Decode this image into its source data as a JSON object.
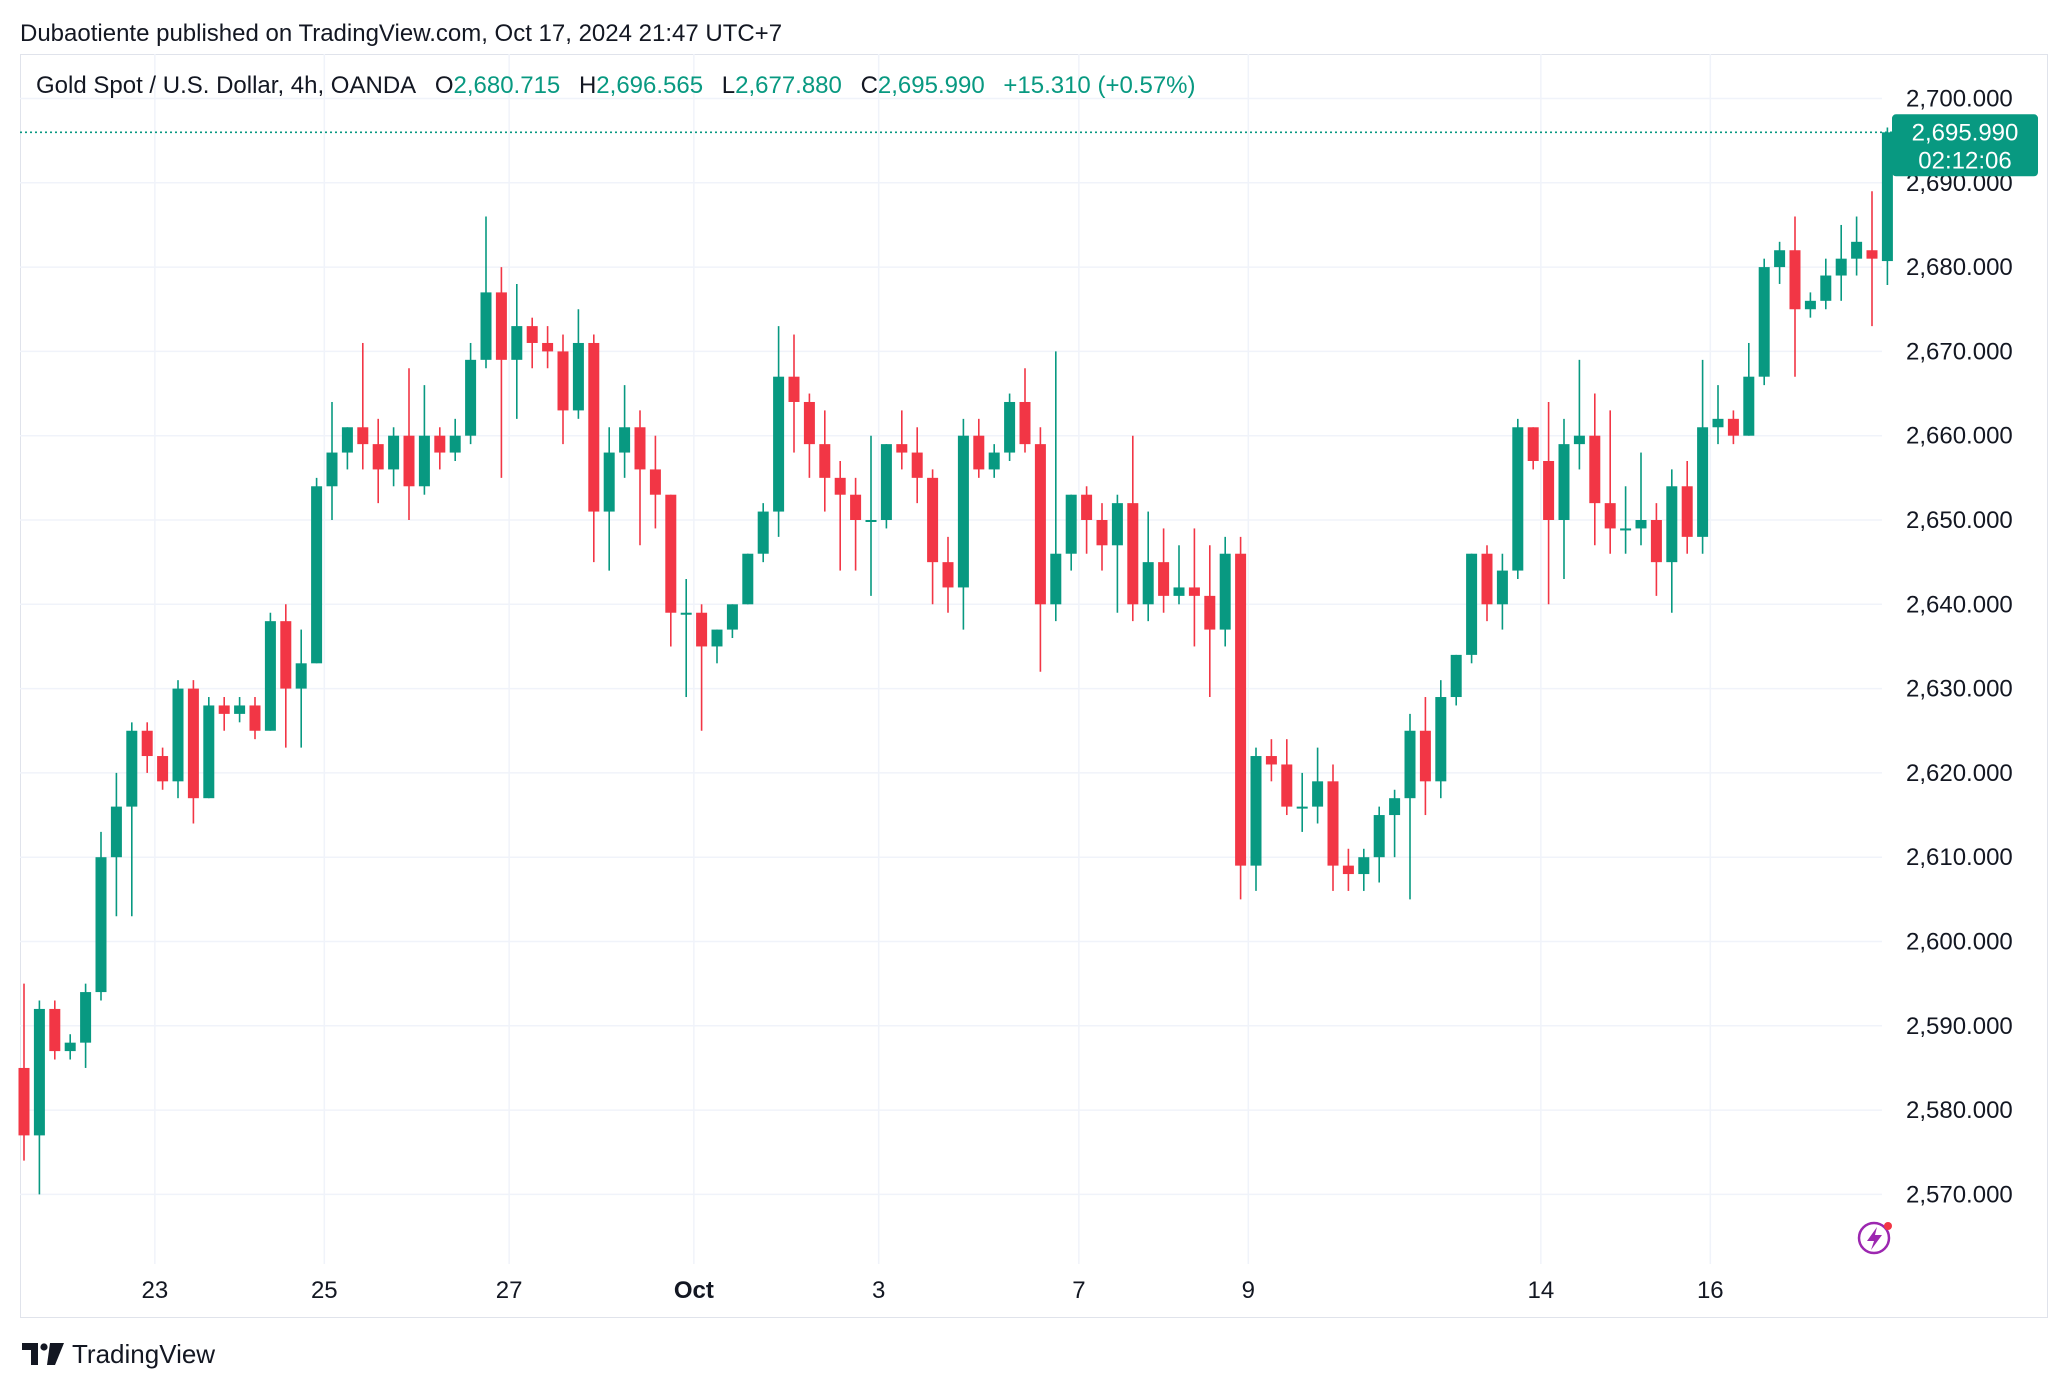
{
  "header": {
    "text": "Dubaotiente published on TradingView.com, Oct 17, 2024 21:47 UTC+7"
  },
  "legend": {
    "symbol": "Gold Spot / U.S. Dollar, 4h, OANDA",
    "o_label": "O",
    "o": "2,680.715",
    "h_label": "H",
    "h": "2,696.565",
    "l_label": "L",
    "l": "2,677.880",
    "c_label": "C",
    "c": "2,695.990",
    "change": "+15.310 (+0.57%)"
  },
  "price_badge": {
    "price": "2,695.990",
    "countdown": "02:12:06",
    "color": "#089981"
  },
  "footer": {
    "brand": "TradingView"
  },
  "colors": {
    "up": "#089981",
    "down": "#f23645",
    "grid": "#f0f3fa",
    "axis_text": "#131722"
  },
  "chart_data": {
    "type": "candlestick",
    "timeframe": "4h",
    "y_ticks": [
      2570,
      2580,
      2590,
      2600,
      2610,
      2620,
      2630,
      2640,
      2650,
      2660,
      2670,
      2680,
      2690,
      2700
    ],
    "y_tick_labels": [
      "2,570.000",
      "2,580.000",
      "2,590.000",
      "2,600.000",
      "2,610.000",
      "2,620.000",
      "2,630.000",
      "2,640.000",
      "2,650.000",
      "2,660.000",
      "2,670.000",
      "2,680.000",
      "2,690.000",
      "2,700.000"
    ],
    "ylim": [
      2563,
      2703
    ],
    "x_ticks": [
      {
        "label": "23",
        "index": 8.5,
        "bold": false
      },
      {
        "label": "25",
        "index": 19.5,
        "bold": false
      },
      {
        "label": "27",
        "index": 31.5,
        "bold": false
      },
      {
        "label": "Oct",
        "index": 43.5,
        "bold": true
      },
      {
        "label": "3",
        "index": 55.5,
        "bold": false
      },
      {
        "label": "7",
        "index": 68.5,
        "bold": false
      },
      {
        "label": "9",
        "index": 79.5,
        "bold": false
      },
      {
        "label": "14",
        "index": 98.5,
        "bold": false
      },
      {
        "label": "16",
        "index": 109.5,
        "bold": false
      }
    ],
    "last_price": 2695.99,
    "candles": [
      {
        "o": 2585,
        "h": 2595,
        "l": 2574,
        "c": 2577
      },
      {
        "o": 2577,
        "h": 2593,
        "l": 2570,
        "c": 2592
      },
      {
        "o": 2592,
        "h": 2593,
        "l": 2586,
        "c": 2587
      },
      {
        "o": 2587,
        "h": 2589,
        "l": 2586,
        "c": 2588
      },
      {
        "o": 2588,
        "h": 2595,
        "l": 2585,
        "c": 2594
      },
      {
        "o": 2594,
        "h": 2613,
        "l": 2593,
        "c": 2610
      },
      {
        "o": 2610,
        "h": 2620,
        "l": 2603,
        "c": 2616
      },
      {
        "o": 2616,
        "h": 2626,
        "l": 2603,
        "c": 2625
      },
      {
        "o": 2625,
        "h": 2626,
        "l": 2620,
        "c": 2622
      },
      {
        "o": 2622,
        "h": 2623,
        "l": 2618,
        "c": 2619
      },
      {
        "o": 2619,
        "h": 2631,
        "l": 2617,
        "c": 2630
      },
      {
        "o": 2630,
        "h": 2631,
        "l": 2614,
        "c": 2617
      },
      {
        "o": 2617,
        "h": 2629,
        "l": 2617,
        "c": 2628
      },
      {
        "o": 2628,
        "h": 2629,
        "l": 2625,
        "c": 2627
      },
      {
        "o": 2627,
        "h": 2629,
        "l": 2626,
        "c": 2628
      },
      {
        "o": 2628,
        "h": 2629,
        "l": 2624,
        "c": 2625
      },
      {
        "o": 2625,
        "h": 2639,
        "l": 2625,
        "c": 2638
      },
      {
        "o": 2638,
        "h": 2640,
        "l": 2623,
        "c": 2630
      },
      {
        "o": 2630,
        "h": 2637,
        "l": 2623,
        "c": 2633
      },
      {
        "o": 2633,
        "h": 2655,
        "l": 2633,
        "c": 2654
      },
      {
        "o": 2654,
        "h": 2664,
        "l": 2650,
        "c": 2658
      },
      {
        "o": 2658,
        "h": 2661,
        "l": 2656,
        "c": 2661
      },
      {
        "o": 2661,
        "h": 2671,
        "l": 2656,
        "c": 2659
      },
      {
        "o": 2659,
        "h": 2662,
        "l": 2652,
        "c": 2656
      },
      {
        "o": 2656,
        "h": 2661,
        "l": 2654,
        "c": 2660
      },
      {
        "o": 2660,
        "h": 2668,
        "l": 2650,
        "c": 2654
      },
      {
        "o": 2654,
        "h": 2666,
        "l": 2653,
        "c": 2660
      },
      {
        "o": 2660,
        "h": 2661,
        "l": 2656,
        "c": 2658
      },
      {
        "o": 2658,
        "h": 2662,
        "l": 2657,
        "c": 2660
      },
      {
        "o": 2660,
        "h": 2671,
        "l": 2659,
        "c": 2669
      },
      {
        "o": 2669,
        "h": 2686,
        "l": 2668,
        "c": 2677
      },
      {
        "o": 2677,
        "h": 2680,
        "l": 2655,
        "c": 2669
      },
      {
        "o": 2669,
        "h": 2678,
        "l": 2662,
        "c": 2673
      },
      {
        "o": 2673,
        "h": 2674,
        "l": 2668,
        "c": 2671
      },
      {
        "o": 2671,
        "h": 2673,
        "l": 2668,
        "c": 2670
      },
      {
        "o": 2670,
        "h": 2672,
        "l": 2659,
        "c": 2663
      },
      {
        "o": 2663,
        "h": 2675,
        "l": 2662,
        "c": 2671
      },
      {
        "o": 2671,
        "h": 2672,
        "l": 2645,
        "c": 2651
      },
      {
        "o": 2651,
        "h": 2661,
        "l": 2644,
        "c": 2658
      },
      {
        "o": 2658,
        "h": 2666,
        "l": 2655,
        "c": 2661
      },
      {
        "o": 2661,
        "h": 2663,
        "l": 2647,
        "c": 2656
      },
      {
        "o": 2656,
        "h": 2660,
        "l": 2649,
        "c": 2653
      },
      {
        "o": 2653,
        "h": 2653,
        "l": 2635,
        "c": 2639
      },
      {
        "o": 2639,
        "h": 2643,
        "l": 2629,
        "c": 2639
      },
      {
        "o": 2639,
        "h": 2640,
        "l": 2625,
        "c": 2635
      },
      {
        "o": 2635,
        "h": 2637,
        "l": 2633,
        "c": 2637
      },
      {
        "o": 2637,
        "h": 2640,
        "l": 2636,
        "c": 2640
      },
      {
        "o": 2640,
        "h": 2646,
        "l": 2640,
        "c": 2646
      },
      {
        "o": 2646,
        "h": 2652,
        "l": 2645,
        "c": 2651
      },
      {
        "o": 2651,
        "h": 2673,
        "l": 2648,
        "c": 2667
      },
      {
        "o": 2667,
        "h": 2672,
        "l": 2658,
        "c": 2664
      },
      {
        "o": 2664,
        "h": 2665,
        "l": 2655,
        "c": 2659
      },
      {
        "o": 2659,
        "h": 2663,
        "l": 2651,
        "c": 2655
      },
      {
        "o": 2655,
        "h": 2657,
        "l": 2644,
        "c": 2653
      },
      {
        "o": 2653,
        "h": 2655,
        "l": 2644,
        "c": 2650
      },
      {
        "o": 2650,
        "h": 2660,
        "l": 2641,
        "c": 2650
      },
      {
        "o": 2650,
        "h": 2659,
        "l": 2649,
        "c": 2659
      },
      {
        "o": 2659,
        "h": 2663,
        "l": 2656,
        "c": 2658
      },
      {
        "o": 2658,
        "h": 2661,
        "l": 2652,
        "c": 2655
      },
      {
        "o": 2655,
        "h": 2656,
        "l": 2640,
        "c": 2645
      },
      {
        "o": 2645,
        "h": 2648,
        "l": 2639,
        "c": 2642
      },
      {
        "o": 2642,
        "h": 2662,
        "l": 2637,
        "c": 2660
      },
      {
        "o": 2660,
        "h": 2662,
        "l": 2655,
        "c": 2656
      },
      {
        "o": 2656,
        "h": 2659,
        "l": 2655,
        "c": 2658
      },
      {
        "o": 2658,
        "h": 2665,
        "l": 2657,
        "c": 2664
      },
      {
        "o": 2664,
        "h": 2668,
        "l": 2658,
        "c": 2659
      },
      {
        "o": 2659,
        "h": 2661,
        "l": 2632,
        "c": 2640
      },
      {
        "o": 2640,
        "h": 2670,
        "l": 2638,
        "c": 2646
      },
      {
        "o": 2646,
        "h": 2653,
        "l": 2644,
        "c": 2653
      },
      {
        "o": 2653,
        "h": 2654,
        "l": 2646,
        "c": 2650
      },
      {
        "o": 2650,
        "h": 2652,
        "l": 2644,
        "c": 2647
      },
      {
        "o": 2647,
        "h": 2653,
        "l": 2639,
        "c": 2652
      },
      {
        "o": 2652,
        "h": 2660,
        "l": 2638,
        "c": 2640
      },
      {
        "o": 2640,
        "h": 2651,
        "l": 2638,
        "c": 2645
      },
      {
        "o": 2645,
        "h": 2649,
        "l": 2639,
        "c": 2641
      },
      {
        "o": 2641,
        "h": 2647,
        "l": 2640,
        "c": 2642
      },
      {
        "o": 2642,
        "h": 2649,
        "l": 2635,
        "c": 2641
      },
      {
        "o": 2641,
        "h": 2647,
        "l": 2629,
        "c": 2637
      },
      {
        "o": 2637,
        "h": 2648,
        "l": 2635,
        "c": 2646
      },
      {
        "o": 2646,
        "h": 2648,
        "l": 2605,
        "c": 2609
      },
      {
        "o": 2609,
        "h": 2623,
        "l": 2606,
        "c": 2622
      },
      {
        "o": 2622,
        "h": 2624,
        "l": 2619,
        "c": 2621
      },
      {
        "o": 2621,
        "h": 2624,
        "l": 2615,
        "c": 2616
      },
      {
        "o": 2616,
        "h": 2620,
        "l": 2613,
        "c": 2616
      },
      {
        "o": 2616,
        "h": 2623,
        "l": 2614,
        "c": 2619
      },
      {
        "o": 2619,
        "h": 2621,
        "l": 2606,
        "c": 2609
      },
      {
        "o": 2609,
        "h": 2611,
        "l": 2606,
        "c": 2608
      },
      {
        "o": 2608,
        "h": 2611,
        "l": 2606,
        "c": 2610
      },
      {
        "o": 2610,
        "h": 2616,
        "l": 2607,
        "c": 2615
      },
      {
        "o": 2615,
        "h": 2618,
        "l": 2610,
        "c": 2617
      },
      {
        "o": 2617,
        "h": 2627,
        "l": 2605,
        "c": 2625
      },
      {
        "o": 2625,
        "h": 2629,
        "l": 2615,
        "c": 2619
      },
      {
        "o": 2619,
        "h": 2631,
        "l": 2617,
        "c": 2629
      },
      {
        "o": 2629,
        "h": 2634,
        "l": 2628,
        "c": 2634
      },
      {
        "o": 2634,
        "h": 2646,
        "l": 2633,
        "c": 2646
      },
      {
        "o": 2646,
        "h": 2647,
        "l": 2638,
        "c": 2640
      },
      {
        "o": 2640,
        "h": 2646,
        "l": 2637,
        "c": 2644
      },
      {
        "o": 2644,
        "h": 2662,
        "l": 2643,
        "c": 2661
      },
      {
        "o": 2661,
        "h": 2661,
        "l": 2656,
        "c": 2657
      },
      {
        "o": 2657,
        "h": 2664,
        "l": 2640,
        "c": 2650
      },
      {
        "o": 2650,
        "h": 2662,
        "l": 2643,
        "c": 2659
      },
      {
        "o": 2659,
        "h": 2669,
        "l": 2656,
        "c": 2660
      },
      {
        "o": 2660,
        "h": 2665,
        "l": 2647,
        "c": 2652
      },
      {
        "o": 2652,
        "h": 2663,
        "l": 2646,
        "c": 2649
      },
      {
        "o": 2649,
        "h": 2654,
        "l": 2646,
        "c": 2649
      },
      {
        "o": 2649,
        "h": 2658,
        "l": 2647,
        "c": 2650
      },
      {
        "o": 2650,
        "h": 2652,
        "l": 2641,
        "c": 2645
      },
      {
        "o": 2645,
        "h": 2656,
        "l": 2639,
        "c": 2654
      },
      {
        "o": 2654,
        "h": 2657,
        "l": 2646,
        "c": 2648
      },
      {
        "o": 2648,
        "h": 2669,
        "l": 2646,
        "c": 2661
      },
      {
        "o": 2661,
        "h": 2666,
        "l": 2659,
        "c": 2662
      },
      {
        "o": 2662,
        "h": 2663,
        "l": 2659,
        "c": 2660
      },
      {
        "o": 2660,
        "h": 2671,
        "l": 2660,
        "c": 2667
      },
      {
        "o": 2667,
        "h": 2681,
        "l": 2666,
        "c": 2680
      },
      {
        "o": 2680,
        "h": 2683,
        "l": 2678,
        "c": 2682
      },
      {
        "o": 2682,
        "h": 2686,
        "l": 2667,
        "c": 2675
      },
      {
        "o": 2675,
        "h": 2677,
        "l": 2674,
        "c": 2676
      },
      {
        "o": 2676,
        "h": 2681,
        "l": 2675,
        "c": 2679
      },
      {
        "o": 2679,
        "h": 2685,
        "l": 2676,
        "c": 2681
      },
      {
        "o": 2681,
        "h": 2686,
        "l": 2679,
        "c": 2683
      },
      {
        "o": 2682,
        "h": 2689,
        "l": 2673,
        "c": 2681
      },
      {
        "o": 2680.715,
        "h": 2696.565,
        "l": 2677.88,
        "c": 2695.99
      }
    ]
  }
}
